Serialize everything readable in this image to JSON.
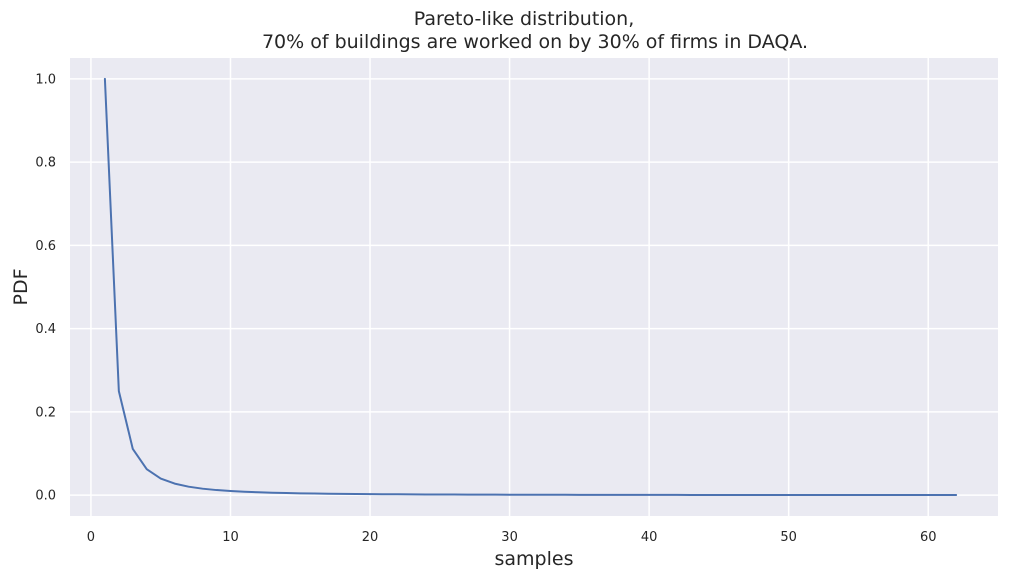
{
  "chart_data": {
    "type": "line",
    "title_lines": [
      "Pareto-like distribution,",
      "70% of buildings are worked on by 30% of firms in DAQA."
    ],
    "xlabel": "samples",
    "ylabel": "PDF",
    "xlim": [
      -1.5,
      65
    ],
    "ylim": [
      -0.05,
      1.05
    ],
    "x_ticks": [
      0,
      10,
      20,
      30,
      40,
      50,
      60
    ],
    "x_tick_labels": [
      "0",
      "10",
      "20",
      "30",
      "40",
      "50",
      "60"
    ],
    "y_ticks": [
      0.0,
      0.2,
      0.4,
      0.6,
      0.8,
      1.0
    ],
    "y_tick_labels": [
      "0.0",
      "0.2",
      "0.4",
      "0.6",
      "0.8",
      "1.0"
    ],
    "grid": true,
    "background": "#eaeaf2",
    "grid_color": "#ffffff",
    "line_color": "#4c72b0",
    "series": [
      {
        "x": [
          1,
          2,
          3,
          4,
          5,
          6,
          7,
          8,
          9,
          10,
          11,
          12,
          13,
          14,
          15,
          16,
          17,
          18,
          19,
          20,
          21,
          22,
          23,
          24,
          25,
          26,
          27,
          28,
          29,
          30,
          31,
          32,
          33,
          34,
          35,
          36,
          37,
          38,
          39,
          40,
          41,
          42,
          43,
          44,
          45,
          46,
          47,
          48,
          49,
          50,
          51,
          52,
          53,
          54,
          55,
          56,
          57,
          58,
          59,
          60,
          61,
          62
        ],
        "y": [
          1.0,
          0.25,
          0.111,
          0.0625,
          0.04,
          0.0278,
          0.0204,
          0.0156,
          0.0123,
          0.01,
          0.0083,
          0.0069,
          0.0059,
          0.0051,
          0.0044,
          0.0039,
          0.0035,
          0.0031,
          0.0028,
          0.0025,
          0.0023,
          0.0021,
          0.0019,
          0.0017,
          0.0016,
          0.0015,
          0.0014,
          0.0013,
          0.0012,
          0.0011,
          0.001,
          0.001,
          0.0009,
          0.0009,
          0.0008,
          0.0008,
          0.0007,
          0.0007,
          0.0007,
          0.0006,
          0.0006,
          0.0006,
          0.0005,
          0.0005,
          0.0005,
          0.0005,
          0.0005,
          0.0004,
          0.0004,
          0.0004,
          0.0004,
          0.0004,
          0.0004,
          0.0003,
          0.0003,
          0.0003,
          0.0003,
          0.0003,
          0.0003,
          0.0003,
          0.0003,
          0.0003
        ]
      }
    ]
  }
}
